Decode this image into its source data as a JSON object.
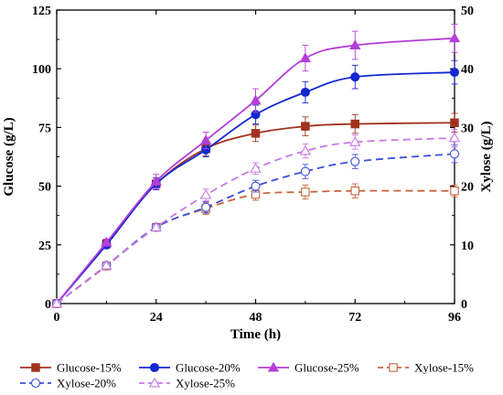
{
  "chart_data": {
    "type": "line",
    "title": "",
    "xlabel": "Time (h)",
    "ylabel": "Glucose (g/L)",
    "y2label": "Xylose (g/L)",
    "xlim": [
      0,
      96
    ],
    "ylim": [
      0,
      125
    ],
    "y2lim": [
      0,
      50
    ],
    "x_ticks": [
      "0",
      "24",
      "48",
      "72",
      "96"
    ],
    "y_ticks": [
      "0",
      "25",
      "50",
      "75",
      "100",
      "125"
    ],
    "y2_ticks": [
      "0",
      "10",
      "20",
      "30",
      "40",
      "50"
    ],
    "grid": false,
    "legend_position": "bottom",
    "x": [
      0,
      12,
      24,
      36,
      48,
      60,
      72,
      96
    ],
    "series": [
      {
        "name": "Glucose-15%",
        "axis": "left",
        "color": "#a0321e",
        "marker": "square-filled",
        "dash": false,
        "values": [
          0,
          25.5,
          51,
          66,
          72.5,
          75.5,
          76.5,
          77
        ],
        "errors": [
          0,
          1.5,
          2.5,
          3,
          3.5,
          4,
          4,
          4
        ]
      },
      {
        "name": "Glucose-20%",
        "axis": "left",
        "color": "#1428d2",
        "marker": "circle-filled",
        "dash": false,
        "values": [
          0,
          25,
          51,
          65.5,
          80.5,
          90,
          96.5,
          98.5
        ],
        "errors": [
          0,
          1.5,
          2.5,
          3,
          4,
          4.5,
          5,
          5
        ]
      },
      {
        "name": "Glucose-25%",
        "axis": "left",
        "color": "#b43ed8",
        "marker": "triangle-filled",
        "dash": false,
        "values": [
          0,
          26,
          52,
          69.5,
          86.5,
          104.5,
          110,
          113
        ],
        "errors": [
          0,
          1.5,
          3,
          3.5,
          5,
          5.5,
          6,
          6
        ]
      },
      {
        "name": "Xylose-15%",
        "axis": "right",
        "color": "#c8643c",
        "marker": "square-open",
        "dash": true,
        "values": [
          0,
          6.4,
          13,
          16.2,
          18.6,
          19,
          19.2,
          19.2
        ],
        "errors": [
          0,
          0.5,
          0.5,
          1,
          1,
          1.2,
          1.2,
          1
        ]
      },
      {
        "name": "Xylose-20%",
        "axis": "right",
        "color": "#3c50dc",
        "marker": "circle-open",
        "dash": true,
        "values": [
          0,
          6.5,
          13,
          16.4,
          20,
          22.5,
          24.2,
          25.5
        ],
        "errors": [
          0,
          0.5,
          0.5,
          1,
          1,
          1.2,
          1.2,
          1.5
        ]
      },
      {
        "name": "Xylose-25%",
        "axis": "right",
        "color": "#c878e6",
        "marker": "triangle-open",
        "dash": true,
        "values": [
          0,
          6.5,
          13,
          18.5,
          23,
          26,
          27.5,
          28.2
        ],
        "errors": [
          0,
          0.5,
          0.5,
          1,
          1,
          1.2,
          1.2,
          1.5
        ]
      }
    ]
  }
}
